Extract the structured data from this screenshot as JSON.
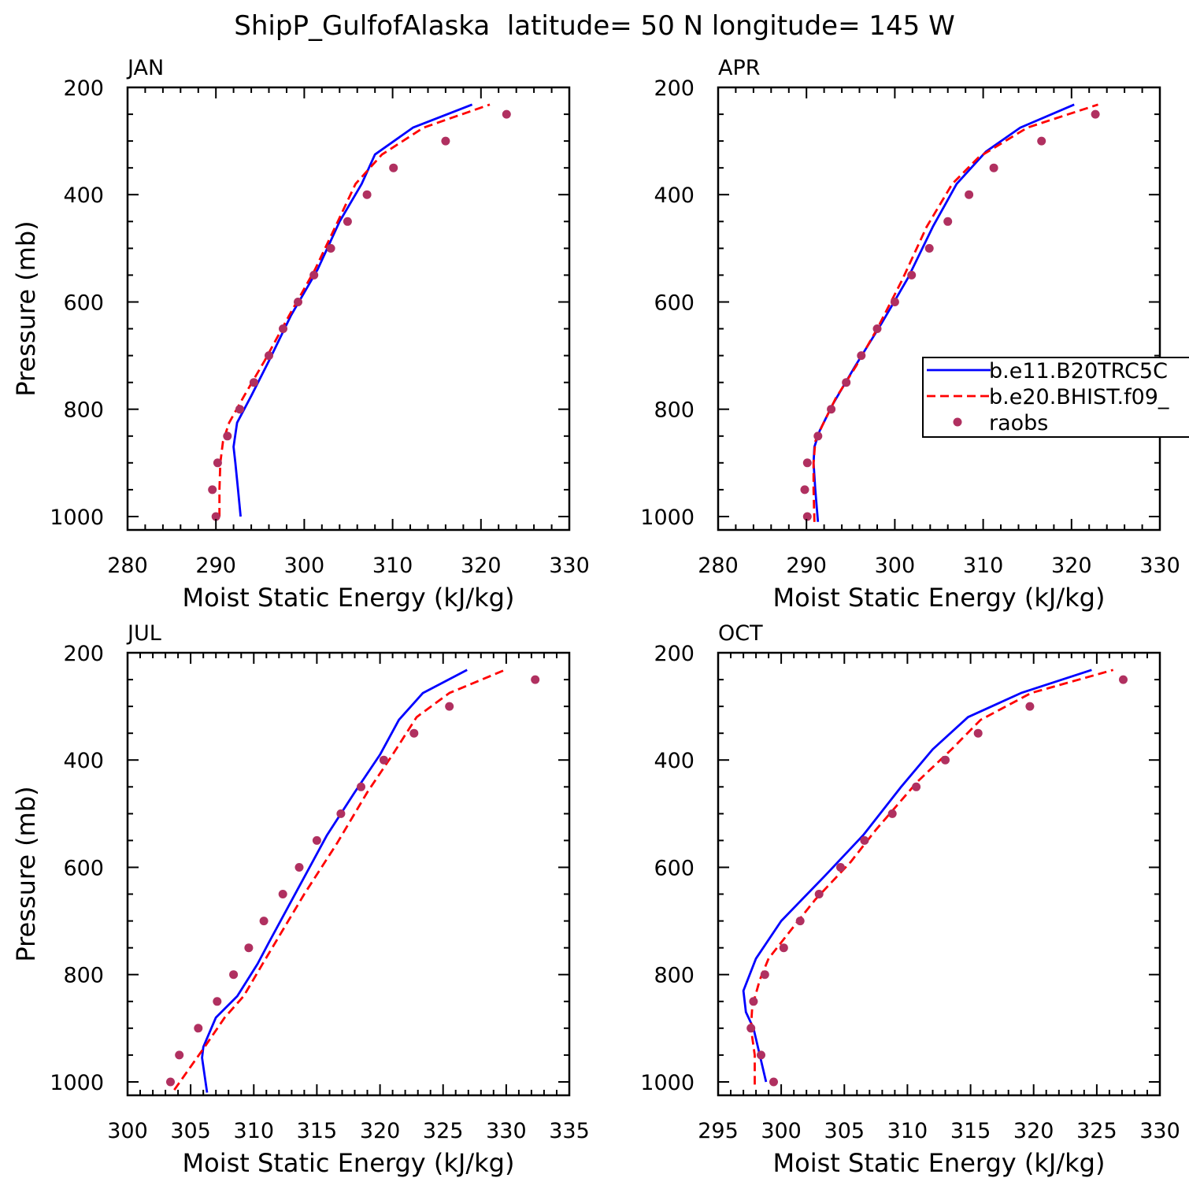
{
  "figure": {
    "title": "ShipP_GulfofAlaska  latitude= 50 N longitude= 145 W"
  },
  "legend_entries": [
    {
      "label": "b.e11.B20TRC5C",
      "color": "#0000ff",
      "style": "solid"
    },
    {
      "label": "b.e20.BHIST.f09_",
      "color": "#ff0000",
      "style": "dashed"
    },
    {
      "label": "raobs",
      "color": "#b03060",
      "style": "marker"
    }
  ],
  "chart_data": [
    {
      "type": "line",
      "panel_label": "JAN",
      "xlabel": "Moist Static Energy (kJ/kg)",
      "ylabel": "Pressure (mb)",
      "xlim": [
        280,
        330
      ],
      "ylim": [
        1025,
        200
      ],
      "xticks": [
        280,
        290,
        300,
        310,
        320,
        330
      ],
      "yticks": [
        200,
        400,
        600,
        800,
        1000
      ],
      "legend": "none",
      "series": [
        {
          "name": "b.e11.B20TRC5C",
          "color": "#0000ff",
          "style": "solid",
          "points": [
            [
              292.8,
              1000
            ],
            [
              292.5,
              950
            ],
            [
              292.2,
              900
            ],
            [
              292.0,
              870
            ],
            [
              292.4,
              825
            ],
            [
              294.0,
              775
            ],
            [
              296.0,
              710
            ],
            [
              298.5,
              625
            ],
            [
              301.5,
              540
            ],
            [
              304.0,
              450
            ],
            [
              306.5,
              380
            ],
            [
              308.0,
              325
            ],
            [
              312.3,
              275
            ],
            [
              319.0,
              232
            ]
          ]
        },
        {
          "name": "b.e20.BHIST.f09_",
          "color": "#ff0000",
          "style": "dashed",
          "points": [
            [
              290.4,
              1000
            ],
            [
              290.4,
              950
            ],
            [
              290.5,
              900
            ],
            [
              290.8,
              860
            ],
            [
              291.5,
              825
            ],
            [
              293.2,
              775
            ],
            [
              295.5,
              710
            ],
            [
              298.3,
              625
            ],
            [
              301.2,
              540
            ],
            [
              303.8,
              450
            ],
            [
              305.8,
              380
            ],
            [
              308.8,
              325
            ],
            [
              313.5,
              275
            ],
            [
              321.0,
              232
            ]
          ]
        },
        {
          "name": "raobs",
          "color": "#b03060",
          "style": "marker",
          "points": [
            [
              290.0,
              1000
            ],
            [
              289.6,
              950
            ],
            [
              290.2,
              900
            ],
            [
              291.3,
              850
            ],
            [
              292.7,
              800
            ],
            [
              294.3,
              750
            ],
            [
              296.0,
              700
            ],
            [
              297.6,
              650
            ],
            [
              299.3,
              600
            ],
            [
              301.1,
              550
            ],
            [
              303.0,
              500
            ],
            [
              304.9,
              450
            ],
            [
              307.1,
              400
            ],
            [
              310.1,
              350
            ],
            [
              316.0,
              300
            ],
            [
              322.9,
              250
            ]
          ]
        }
      ]
    },
    {
      "type": "line",
      "panel_label": "APR",
      "xlabel": "Moist Static Energy (kJ/kg)",
      "ylabel": "",
      "xlim": [
        280,
        330
      ],
      "ylim": [
        1025,
        200
      ],
      "xticks": [
        280,
        290,
        300,
        310,
        320,
        330
      ],
      "yticks": [
        200,
        400,
        600,
        800,
        1000
      ],
      "legend": "right",
      "series": [
        {
          "name": "b.e11.B20TRC5C",
          "color": "#0000ff",
          "style": "solid",
          "points": [
            [
              291.3,
              1010
            ],
            [
              291.0,
              950
            ],
            [
              290.8,
              900
            ],
            [
              290.9,
              870
            ],
            [
              291.5,
              840
            ],
            [
              293.0,
              790
            ],
            [
              295.5,
              720
            ],
            [
              298.5,
              640
            ],
            [
              301.5,
              555
            ],
            [
              304.3,
              460
            ],
            [
              307.0,
              380
            ],
            [
              310.3,
              320
            ],
            [
              314.2,
              275
            ],
            [
              320.3,
              232
            ]
          ]
        },
        {
          "name": "b.e20.BHIST.f09_",
          "color": "#ff0000",
          "style": "dashed",
          "points": [
            [
              290.9,
              1010
            ],
            [
              290.8,
              950
            ],
            [
              290.8,
              900
            ],
            [
              291.0,
              860
            ],
            [
              291.8,
              830
            ],
            [
              293.3,
              780
            ],
            [
              295.6,
              720
            ],
            [
              298.0,
              650
            ],
            [
              300.8,
              560
            ],
            [
              303.6,
              460
            ],
            [
              306.5,
              380
            ],
            [
              309.5,
              330
            ],
            [
              315.0,
              275
            ],
            [
              323.0,
              232
            ]
          ]
        },
        {
          "name": "raobs",
          "color": "#b03060",
          "style": "marker",
          "points": [
            [
              290.1,
              1000
            ],
            [
              289.8,
              950
            ],
            [
              290.1,
              900
            ],
            [
              291.3,
              850
            ],
            [
              292.8,
              800
            ],
            [
              294.5,
              750
            ],
            [
              296.2,
              700
            ],
            [
              298.0,
              650
            ],
            [
              300.0,
              600
            ],
            [
              301.9,
              550
            ],
            [
              303.9,
              500
            ],
            [
              306.0,
              450
            ],
            [
              308.4,
              400
            ],
            [
              311.2,
              350
            ],
            [
              316.6,
              300
            ],
            [
              322.7,
              250
            ]
          ]
        }
      ]
    },
    {
      "type": "line",
      "panel_label": "JUL",
      "xlabel": "Moist Static Energy (kJ/kg)",
      "ylabel": "Pressure (mb)",
      "xlim": [
        300,
        335
      ],
      "ylim": [
        1025,
        200
      ],
      "xticks": [
        300,
        305,
        310,
        315,
        320,
        325,
        330,
        335
      ],
      "yticks": [
        200,
        400,
        600,
        800,
        1000
      ],
      "legend": "none",
      "series": [
        {
          "name": "b.e11.B20TRC5C",
          "color": "#0000ff",
          "style": "solid",
          "points": [
            [
              306.3,
              1020
            ],
            [
              305.9,
              955
            ],
            [
              306.0,
              935
            ],
            [
              307.0,
              880
            ],
            [
              308.7,
              840
            ],
            [
              310.3,
              780
            ],
            [
              311.2,
              740
            ],
            [
              313.5,
              640
            ],
            [
              315.8,
              540
            ],
            [
              318.0,
              460
            ],
            [
              320.0,
              390
            ],
            [
              321.5,
              325
            ],
            [
              323.4,
              275
            ],
            [
              326.9,
              232
            ]
          ]
        },
        {
          "name": "b.e20.BHIST.f09_",
          "color": "#ff0000",
          "style": "dashed",
          "points": [
            [
              303.7,
              1015
            ],
            [
              304.9,
              975
            ],
            [
              306.1,
              935
            ],
            [
              307.7,
              880
            ],
            [
              309.2,
              840
            ],
            [
              310.7,
              780
            ],
            [
              314.0,
              650
            ],
            [
              316.6,
              555
            ],
            [
              319.0,
              460
            ],
            [
              321.0,
              390
            ],
            [
              322.9,
              320
            ],
            [
              325.5,
              275
            ],
            [
              329.9,
              232
            ]
          ]
        },
        {
          "name": "raobs",
          "color": "#b03060",
          "style": "marker",
          "points": [
            [
              303.4,
              1000
            ],
            [
              304.1,
              950
            ],
            [
              305.6,
              900
            ],
            [
              307.1,
              850
            ],
            [
              308.4,
              800
            ],
            [
              309.6,
              750
            ],
            [
              310.8,
              700
            ],
            [
              312.3,
              650
            ],
            [
              313.6,
              600
            ],
            [
              315.0,
              550
            ],
            [
              316.9,
              500
            ],
            [
              318.5,
              450
            ],
            [
              320.3,
              400
            ],
            [
              322.7,
              350
            ],
            [
              325.5,
              300
            ],
            [
              332.3,
              250
            ]
          ]
        }
      ]
    },
    {
      "type": "line",
      "panel_label": "OCT",
      "xlabel": "Moist Static Energy (kJ/kg)",
      "ylabel": "",
      "xlim": [
        295,
        330
      ],
      "ylim": [
        1025,
        200
      ],
      "xticks": [
        295,
        300,
        305,
        310,
        315,
        320,
        325,
        330
      ],
      "yticks": [
        200,
        400,
        600,
        800,
        1000
      ],
      "legend": "none",
      "series": [
        {
          "name": "b.e11.B20TRC5C",
          "color": "#0000ff",
          "style": "solid",
          "points": [
            [
              298.8,
              1000
            ],
            [
              298.3,
              950
            ],
            [
              297.8,
              900
            ],
            [
              297.2,
              870
            ],
            [
              297.0,
              830
            ],
            [
              298.0,
              770
            ],
            [
              300.0,
              700
            ],
            [
              303.5,
              615
            ],
            [
              306.5,
              540
            ],
            [
              309.5,
              450
            ],
            [
              312.0,
              380
            ],
            [
              314.8,
              320
            ],
            [
              319.0,
              275
            ],
            [
              324.6,
              232
            ]
          ]
        },
        {
          "name": "b.e20.BHIST.f09_",
          "color": "#ff0000",
          "style": "dashed",
          "points": [
            [
              297.9,
              1005
            ],
            [
              297.9,
              950
            ],
            [
              297.6,
              900
            ],
            [
              297.7,
              860
            ],
            [
              298.3,
              810
            ],
            [
              299.0,
              770
            ],
            [
              301.0,
              710
            ],
            [
              302.7,
              660
            ],
            [
              305.5,
              590
            ],
            [
              307.5,
              530
            ],
            [
              310.8,
              440
            ],
            [
              313.5,
              380
            ],
            [
              315.8,
              325
            ],
            [
              319.8,
              275
            ],
            [
              326.3,
              232
            ]
          ]
        },
        {
          "name": "raobs",
          "color": "#b03060",
          "style": "marker",
          "points": [
            [
              299.4,
              1000
            ],
            [
              298.4,
              950
            ],
            [
              297.6,
              900
            ],
            [
              297.8,
              850
            ],
            [
              298.7,
              800
            ],
            [
              300.2,
              750
            ],
            [
              301.5,
              700
            ],
            [
              303.0,
              650
            ],
            [
              304.7,
              600
            ],
            [
              306.6,
              550
            ],
            [
              308.8,
              500
            ],
            [
              310.7,
              450
            ],
            [
              313.0,
              400
            ],
            [
              315.6,
              350
            ],
            [
              319.7,
              300
            ],
            [
              327.1,
              250
            ]
          ]
        }
      ]
    }
  ]
}
